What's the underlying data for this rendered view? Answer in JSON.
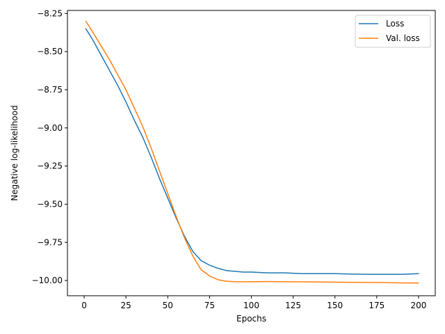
{
  "chart_data": {
    "type": "line",
    "xlabel": "Epochs",
    "ylabel": "Negative log-likelihood",
    "xlim": [
      -10,
      210
    ],
    "ylim": [
      -10.1,
      -8.23
    ],
    "xticks": [
      0,
      25,
      50,
      75,
      100,
      125,
      150,
      175,
      200
    ],
    "yticks": [
      -10.0,
      -9.75,
      -9.5,
      -9.25,
      -9.0,
      -8.75,
      -8.5,
      -8.25
    ],
    "ytick_labels": [
      "−10.00",
      "−9.75",
      "−9.50",
      "−9.25",
      "−9.00",
      "−8.75",
      "−8.50",
      "−8.25"
    ],
    "xtick_labels": [
      "0",
      "25",
      "50",
      "75",
      "100",
      "125",
      "150",
      "175",
      "200"
    ],
    "grid": false,
    "legend": {
      "placement": "top-right"
    },
    "series": [
      {
        "name": "Loss",
        "color": "#1f77b4",
        "x": [
          1,
          5,
          10,
          15,
          20,
          25,
          30,
          35,
          40,
          45,
          50,
          55,
          60,
          65,
          70,
          75,
          80,
          85,
          90,
          95,
          100,
          110,
          120,
          130,
          140,
          150,
          160,
          170,
          180,
          190,
          200
        ],
        "y": [
          -8.35,
          -8.42,
          -8.52,
          -8.62,
          -8.72,
          -8.83,
          -8.95,
          -9.06,
          -9.19,
          -9.33,
          -9.46,
          -9.59,
          -9.71,
          -9.81,
          -9.87,
          -9.9,
          -9.92,
          -9.935,
          -9.94,
          -9.945,
          -9.945,
          -9.95,
          -9.95,
          -9.955,
          -9.955,
          -9.955,
          -9.958,
          -9.96,
          -9.96,
          -9.96,
          -9.955
        ]
      },
      {
        "name": "Val. loss",
        "color": "#ff7f0e",
        "x": [
          1,
          5,
          10,
          15,
          20,
          25,
          30,
          35,
          40,
          45,
          50,
          55,
          60,
          65,
          70,
          75,
          80,
          85,
          90,
          95,
          100,
          110,
          120,
          130,
          140,
          150,
          160,
          170,
          180,
          190,
          200
        ],
        "y": [
          -8.3,
          -8.37,
          -8.46,
          -8.55,
          -8.65,
          -8.75,
          -8.87,
          -8.99,
          -9.13,
          -9.28,
          -9.43,
          -9.58,
          -9.72,
          -9.84,
          -9.93,
          -9.97,
          -9.995,
          -10.005,
          -10.008,
          -10.008,
          -10.008,
          -10.007,
          -10.008,
          -10.009,
          -10.01,
          -10.011,
          -10.012,
          -10.013,
          -10.014,
          -10.016,
          -10.017
        ]
      }
    ]
  }
}
